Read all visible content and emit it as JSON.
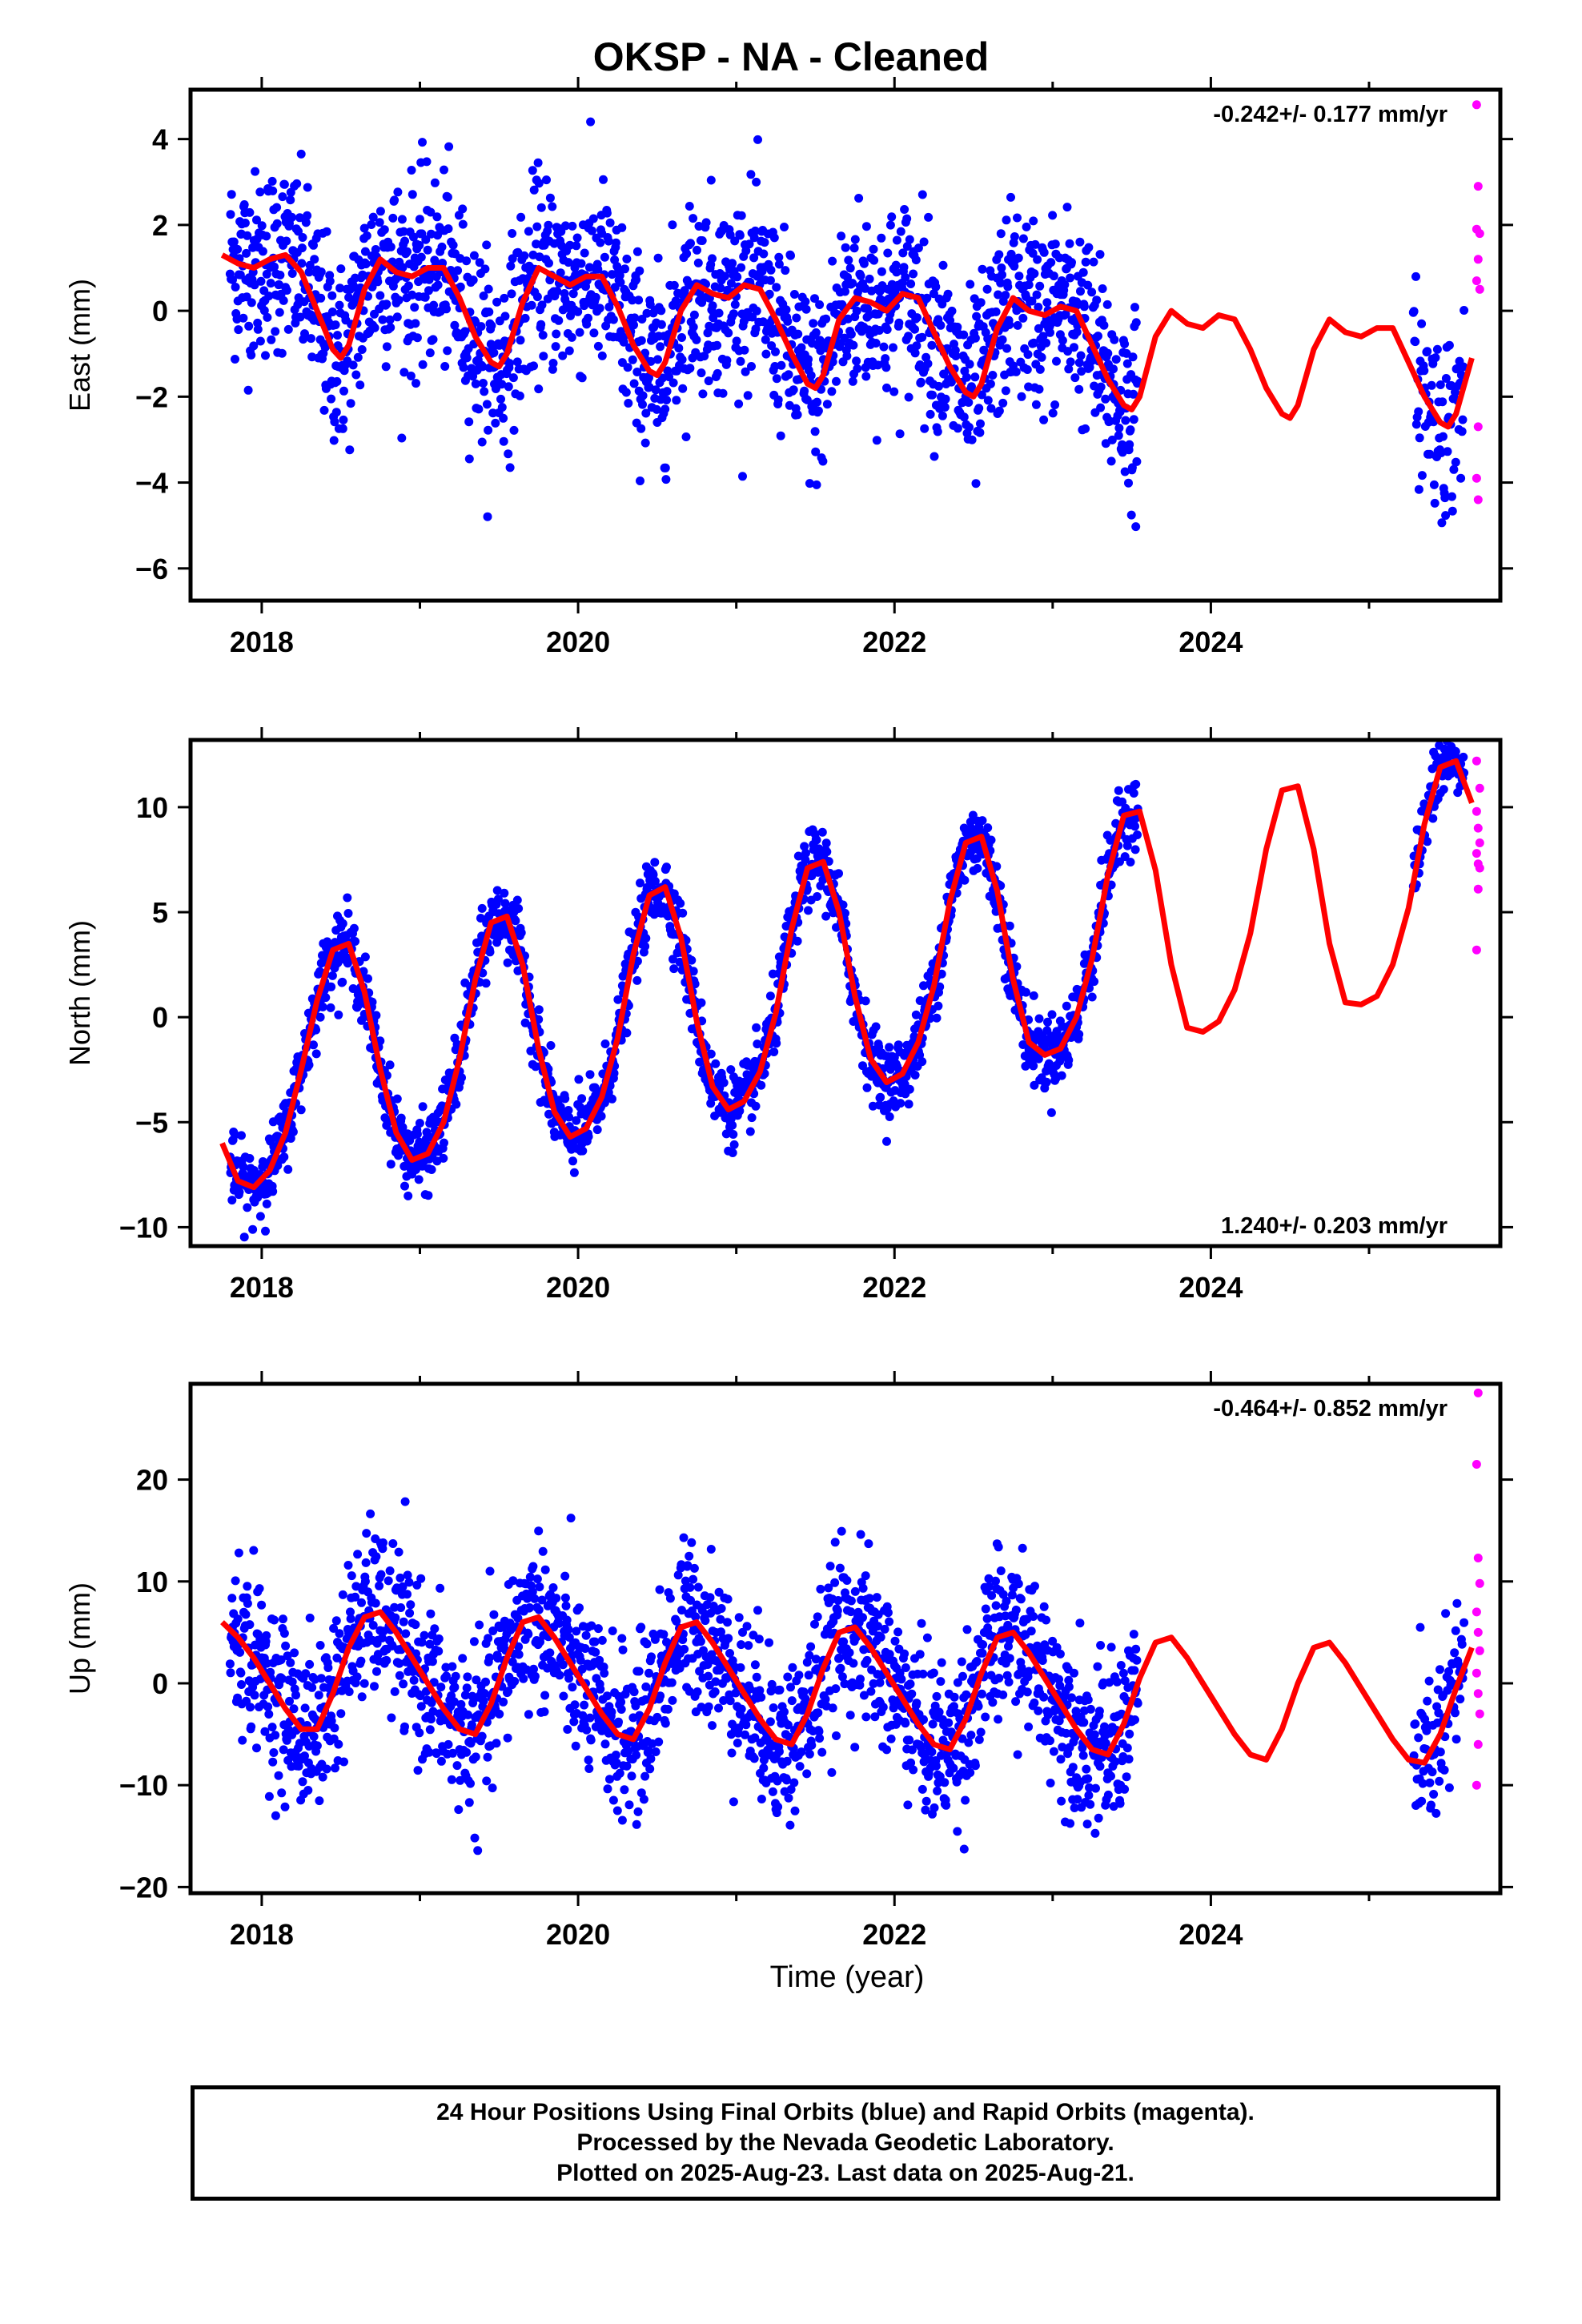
{
  "title": "OKSP  - NA - Cleaned",
  "colors": {
    "final": "#0000ff",
    "rapid": "#ff00ff",
    "model": "#ff0000"
  },
  "chart_data": [
    {
      "type": "scatter",
      "ylabel": "East (mm)",
      "rate_label": "-0.242+/- 0.177 mm/yr",
      "xlim": [
        2017.55,
        2025.83
      ],
      "ylim": [
        -6.75,
        5.15
      ],
      "xticks": [
        "2018",
        "2020",
        "2022",
        "2024"
      ],
      "yticks": [
        "4",
        "2",
        "0",
        "−2",
        "−4",
        "−6"
      ],
      "series": [
        {
          "kind": "model",
          "x": [
            2017.75,
            2017.85,
            2017.95,
            2018.05,
            2018.15,
            2018.25,
            2018.35,
            2018.45,
            2018.5,
            2018.55,
            2018.65,
            2018.75,
            2018.85,
            2018.95,
            2019.05,
            2019.15,
            2019.25,
            2019.35,
            2019.45,
            2019.5,
            2019.55,
            2019.65,
            2019.75,
            2019.85,
            2019.95,
            2020.05,
            2020.15,
            2020.25,
            2020.35,
            2020.45,
            2020.5,
            2020.55,
            2020.65,
            2020.75,
            2020.85,
            2020.95,
            2021.05,
            2021.15,
            2021.25,
            2021.35,
            2021.45,
            2021.5,
            2021.55,
            2021.65,
            2021.75,
            2021.85,
            2021.95,
            2022.05,
            2022.15,
            2022.25,
            2022.35,
            2022.45,
            2022.5,
            2022.55,
            2022.65,
            2022.75,
            2022.85,
            2022.95,
            2023.05,
            2023.15,
            2023.25,
            2023.35,
            2023.45,
            2023.5,
            2023.55,
            2023.65,
            2023.75,
            2023.85,
            2023.95,
            2024.05,
            2024.15,
            2024.25,
            2024.35,
            2024.45,
            2024.5,
            2024.55,
            2024.65,
            2024.75,
            2024.85,
            2024.95,
            2025.05,
            2025.15,
            2025.25,
            2025.35,
            2025.45,
            2025.5,
            2025.55,
            2025.65
          ],
          "y": [
            1.3,
            1.1,
            1.0,
            1.2,
            1.3,
            0.9,
            0.0,
            -0.9,
            -1.1,
            -0.8,
            0.5,
            1.2,
            0.9,
            0.8,
            1.0,
            1.0,
            0.3,
            -0.6,
            -1.2,
            -1.3,
            -1.0,
            0.2,
            1.0,
            0.8,
            0.6,
            0.8,
            0.8,
            0.1,
            -0.8,
            -1.4,
            -1.5,
            -1.2,
            0.0,
            0.6,
            0.4,
            0.3,
            0.6,
            0.5,
            -0.2,
            -1.0,
            -1.7,
            -1.8,
            -1.5,
            -0.2,
            0.3,
            0.2,
            0.0,
            0.4,
            0.3,
            -0.5,
            -1.3,
            -1.9,
            -2.0,
            -1.7,
            -0.4,
            0.3,
            0.0,
            -0.1,
            0.1,
            0.0,
            -0.8,
            -1.6,
            -2.2,
            -2.3,
            -2.0,
            -0.6,
            0.0,
            -0.3,
            -0.4,
            -0.1,
            -0.2,
            -0.9,
            -1.8,
            -2.4,
            -2.5,
            -2.2,
            -0.9,
            -0.2,
            -0.5,
            -0.6,
            -0.4,
            -0.4,
            -1.2,
            -2.0,
            -2.6,
            -2.7,
            -2.4,
            -1.1
          ]
        },
        {
          "kind": "final",
          "sigma": 1.1,
          "x_start": 2017.8,
          "x_end": 2023.54,
          "x_start2": 2025.28,
          "x_end2": 2025.6
        },
        {
          "kind": "rapid",
          "points": [
            [
              2025.68,
              4.8
            ],
            [
              2025.69,
              2.9
            ],
            [
              2025.68,
              1.9
            ],
            [
              2025.7,
              1.8
            ],
            [
              2025.69,
              1.2
            ],
            [
              2025.68,
              0.7
            ],
            [
              2025.7,
              0.5
            ],
            [
              2025.69,
              -2.7
            ],
            [
              2025.68,
              -3.9
            ],
            [
              2025.69,
              -4.4
            ]
          ]
        }
      ]
    },
    {
      "type": "scatter",
      "ylabel": "North (mm)",
      "rate_label": "1.240+/- 0.203 mm/yr",
      "xlim": [
        2017.55,
        2025.83
      ],
      "ylim": [
        -10.9,
        13.2
      ],
      "xticks": [
        "2018",
        "2020",
        "2022",
        "2024"
      ],
      "yticks": [
        "10",
        "5",
        "0",
        "−5",
        "−10"
      ],
      "series": [
        {
          "kind": "model",
          "x": [
            2017.75,
            2017.85,
            2017.95,
            2018.05,
            2018.15,
            2018.25,
            2018.35,
            2018.45,
            2018.55,
            2018.65,
            2018.75,
            2018.85,
            2018.95,
            2019.05,
            2019.15,
            2019.25,
            2019.35,
            2019.45,
            2019.55,
            2019.65,
            2019.75,
            2019.85,
            2019.95,
            2020.05,
            2020.15,
            2020.25,
            2020.35,
            2020.45,
            2020.55,
            2020.65,
            2020.75,
            2020.85,
            2020.95,
            2021.05,
            2021.15,
            2021.25,
            2021.35,
            2021.45,
            2021.55,
            2021.65,
            2021.75,
            2021.85,
            2021.95,
            2022.05,
            2022.15,
            2022.25,
            2022.35,
            2022.45,
            2022.55,
            2022.65,
            2022.75,
            2022.85,
            2022.95,
            2023.05,
            2023.15,
            2023.25,
            2023.35,
            2023.45,
            2023.55,
            2023.65,
            2023.75,
            2023.85,
            2023.95,
            2024.05,
            2024.15,
            2024.25,
            2024.35,
            2024.45,
            2024.55,
            2024.65,
            2024.75,
            2024.85,
            2024.95,
            2025.05,
            2025.15,
            2025.25,
            2025.35,
            2025.45,
            2025.55,
            2025.65
          ],
          "y": [
            -6.0,
            -7.8,
            -8.1,
            -7.3,
            -5.5,
            -2.5,
            0.8,
            3.2,
            3.5,
            1.2,
            -2.5,
            -5.5,
            -6.8,
            -6.5,
            -5.0,
            -2.0,
            1.8,
            4.5,
            4.8,
            2.5,
            -1.5,
            -4.5,
            -5.7,
            -5.3,
            -3.8,
            -1.0,
            3.0,
            5.8,
            6.2,
            3.8,
            -0.2,
            -3.3,
            -4.4,
            -4.0,
            -2.6,
            0.2,
            4.2,
            7.1,
            7.4,
            5.0,
            1.0,
            -2.0,
            -3.1,
            -2.7,
            -1.2,
            1.5,
            5.5,
            8.3,
            8.6,
            6.0,
            1.8,
            -1.2,
            -1.8,
            -1.5,
            0.0,
            2.8,
            6.8,
            9.6,
            9.8,
            7.0,
            2.5,
            -0.5,
            -0.7,
            -0.2,
            1.3,
            4.0,
            8.0,
            10.8,
            11.0,
            8.0,
            3.5,
            0.7,
            0.6,
            1.0,
            2.5,
            5.2,
            9.2,
            11.9,
            12.2,
            10.2
          ]
        },
        {
          "kind": "final",
          "sigma": 0.85,
          "x_start": 2017.8,
          "x_end": 2023.54,
          "x_start2": 2025.28,
          "x_end2": 2025.6
        },
        {
          "kind": "rapid",
          "points": [
            [
              2025.68,
              12.2
            ],
            [
              2025.7,
              10.9
            ],
            [
              2025.68,
              9.8
            ],
            [
              2025.69,
              9.0
            ],
            [
              2025.7,
              8.3
            ],
            [
              2025.68,
              7.8
            ],
            [
              2025.69,
              7.3
            ],
            [
              2025.7,
              7.1
            ],
            [
              2025.69,
              6.1
            ],
            [
              2025.68,
              3.2
            ]
          ]
        }
      ]
    },
    {
      "type": "scatter",
      "ylabel": "Up (mm)",
      "xlabel": "Time (year)",
      "rate_label": "-0.464+/- 0.852 mm/yr",
      "xlim": [
        2017.55,
        2025.83
      ],
      "ylim": [
        -20.6,
        29.4
      ],
      "xticks": [
        "2018",
        "2020",
        "2022",
        "2024"
      ],
      "yticks": [
        "20",
        "10",
        "0",
        "−10",
        "−20"
      ],
      "series": [
        {
          "kind": "model",
          "x": [
            2017.75,
            2017.85,
            2017.95,
            2018.05,
            2018.15,
            2018.25,
            2018.35,
            2018.45,
            2018.55,
            2018.65,
            2018.75,
            2018.85,
            2018.95,
            2019.05,
            2019.15,
            2019.25,
            2019.35,
            2019.45,
            2019.55,
            2019.65,
            2019.75,
            2019.85,
            2019.95,
            2020.05,
            2020.15,
            2020.25,
            2020.35,
            2020.45,
            2020.55,
            2020.65,
            2020.75,
            2020.85,
            2020.95,
            2021.05,
            2021.15,
            2021.25,
            2021.35,
            2021.45,
            2021.55,
            2021.65,
            2021.75,
            2021.85,
            2021.95,
            2022.05,
            2022.15,
            2022.25,
            2022.35,
            2022.45,
            2022.55,
            2022.65,
            2022.75,
            2022.85,
            2022.95,
            2023.05,
            2023.15,
            2023.25,
            2023.35,
            2023.45,
            2023.55,
            2023.65,
            2023.75,
            2023.85,
            2023.95,
            2024.05,
            2024.15,
            2024.25,
            2024.35,
            2024.45,
            2024.55,
            2024.65,
            2024.75,
            2024.85,
            2024.95,
            2025.05,
            2025.15,
            2025.25,
            2025.35,
            2025.45,
            2025.55,
            2025.65
          ],
          "y": [
            6.0,
            4.5,
            2.5,
            0.0,
            -2.5,
            -4.5,
            -4.5,
            -1.0,
            3.5,
            6.5,
            7.0,
            5.0,
            2.5,
            0.0,
            -2.5,
            -4.5,
            -5.0,
            -2.0,
            2.5,
            6.0,
            6.5,
            4.5,
            2.0,
            -0.5,
            -3.0,
            -5.0,
            -5.5,
            -2.5,
            2.0,
            5.5,
            6.0,
            4.0,
            1.5,
            -1.0,
            -3.5,
            -5.5,
            -6.0,
            -3.0,
            1.5,
            5.0,
            5.5,
            3.5,
            1.0,
            -1.5,
            -4.0,
            -6.0,
            -6.5,
            -3.5,
            1.0,
            4.5,
            5.0,
            3.0,
            0.5,
            -2.0,
            -4.5,
            -6.5,
            -7.0,
            -4.0,
            0.5,
            4.0,
            4.5,
            2.5,
            0.0,
            -2.5,
            -5.0,
            -7.0,
            -7.5,
            -4.5,
            0.0,
            3.5,
            4.0,
            2.0,
            -0.5,
            -3.0,
            -5.5,
            -7.5,
            -7.8,
            -5.0,
            -0.5,
            3.5
          ]
        },
        {
          "kind": "final",
          "sigma": 4.0,
          "x_start": 2017.8,
          "x_end": 2023.54,
          "x_start2": 2025.28,
          "x_end2": 2025.6
        },
        {
          "kind": "rapid",
          "points": [
            [
              2025.69,
              28.5
            ],
            [
              2025.68,
              21.5
            ],
            [
              2025.69,
              12.3
            ],
            [
              2025.7,
              9.8
            ],
            [
              2025.68,
              7.0
            ],
            [
              2025.69,
              5.0
            ],
            [
              2025.7,
              3.2
            ],
            [
              2025.68,
              1.0
            ],
            [
              2025.69,
              -1.0
            ],
            [
              2025.7,
              -3.0
            ],
            [
              2025.69,
              -6.0
            ],
            [
              2025.68,
              -10.0
            ]
          ]
        }
      ]
    }
  ],
  "caption": {
    "line1": "24 Hour Positions Using Final Orbits (blue) and Rapid Orbits (magenta).",
    "line2": "Processed by the Nevada Geodetic Laboratory.",
    "line3": "Plotted on 2025-Aug-23. Last data on 2025-Aug-21."
  }
}
